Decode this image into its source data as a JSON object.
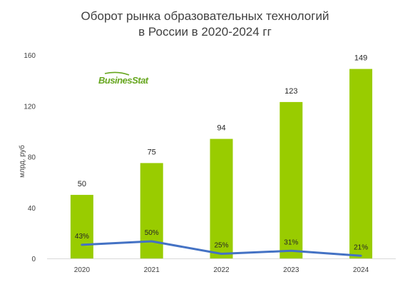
{
  "title_line1": "Оборот рынка образовательных технологий",
  "title_line2": "в России в 2020-2024 гг",
  "logo_text": "BusinesStat",
  "colors": {
    "bar": "#99cc00",
    "line": "#4472c4",
    "logo": "#66a61e",
    "text": "#404040"
  },
  "chart_data": {
    "type": "bar",
    "categories": [
      "2020",
      "2021",
      "2022",
      "2023",
      "2024"
    ],
    "ylabel": "млрд. руб",
    "ylim": [
      0,
      160
    ],
    "yticks": [
      0,
      40,
      80,
      120,
      160
    ],
    "series": [
      {
        "values": [
          50,
          75,
          94,
          123,
          149
        ],
        "value_labels": [
          "50",
          "75",
          "94",
          "123",
          "149"
        ]
      }
    ],
    "line_series": {
      "type": "line",
      "values": [
        43,
        50,
        25,
        31,
        21
      ],
      "labels": [
        "43%",
        "50%",
        "25%",
        "31%",
        "21%"
      ]
    },
    "grid": false
  }
}
